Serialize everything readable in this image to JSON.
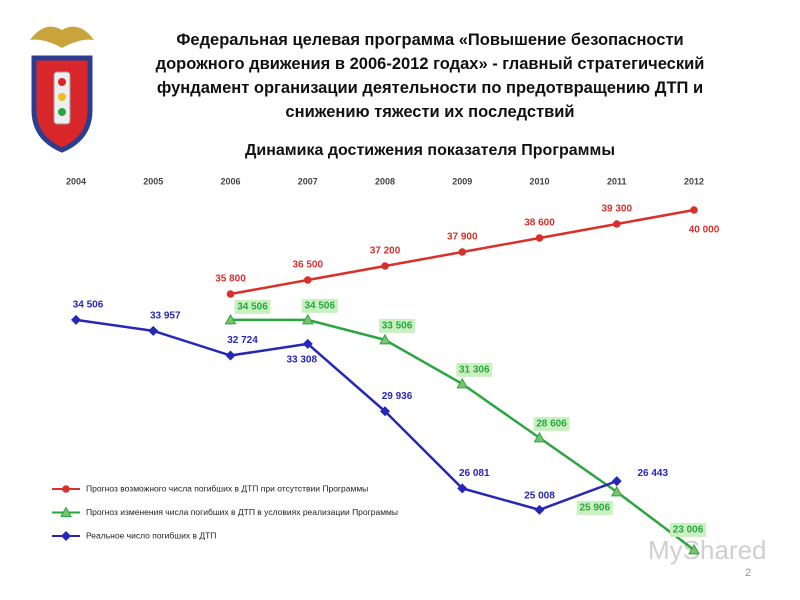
{
  "chart_data": {
    "type": "line",
    "title": "Федеральная целевая программа «Повышение безопасности дорожного движения в 2006-2012 годах» - главный стратегический фундамент организации деятельности по предотвращению ДТП и снижению тяжести их последствий",
    "subtitle": "Динамика достижения показателя Программы",
    "categories": [
      "2004",
      "2005",
      "2006",
      "2007",
      "2008",
      "2009",
      "2010",
      "2011",
      "2012"
    ],
    "ylim": [
      22000,
      41000
    ],
    "series": [
      {
        "name": "Прогноз возможного числа погибших в ДТП при отсутствии Программы",
        "color": "#d9302c",
        "values": [
          null,
          null,
          35800,
          36500,
          37200,
          37900,
          38600,
          39300,
          40000
        ],
        "value_labels": [
          null,
          null,
          "35 800",
          "36 500",
          "37 200",
          "37 900",
          "38 600",
          "39 300",
          "40 000"
        ]
      },
      {
        "name": "Прогноз изменения числа погибших в ДТП в условиях реализации Программы",
        "color": "#2aa640",
        "values": [
          null,
          null,
          34506,
          34506,
          33506,
          31306,
          28606,
          25906,
          23006
        ],
        "value_labels": [
          null,
          null,
          "34 506",
          "34 506",
          "33 506",
          "31 306",
          "28 606",
          "25 906",
          "23 006"
        ]
      },
      {
        "name": "Реальное число погибших в ДТП",
        "color": "#2626b8",
        "values": [
          34506,
          33957,
          32724,
          33308,
          29936,
          26081,
          25008,
          26443,
          null
        ],
        "value_labels": [
          "34 506",
          "33 957",
          "32 724",
          "33 308",
          "29 936",
          "26 081",
          "25 008",
          "26 443",
          null
        ]
      }
    ],
    "watermark": "MyShared",
    "page_number": "2"
  }
}
